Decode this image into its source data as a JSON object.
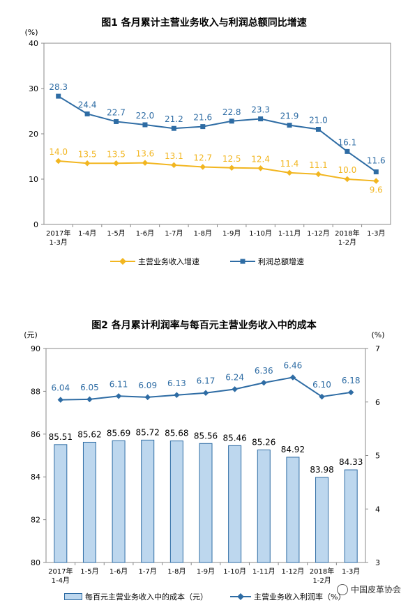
{
  "chart_data": [
    {
      "type": "line",
      "title": "图1  各月累计主营业务收入与利润总额同比增速",
      "yunit": "(%)",
      "ylim": [
        0,
        40
      ],
      "yticks": [
        0,
        10,
        20,
        30,
        40
      ],
      "categories": [
        [
          "2017年",
          "1-3月"
        ],
        [
          "1-4月"
        ],
        [
          "1-5月"
        ],
        [
          "1-6月"
        ],
        [
          "1-7月"
        ],
        [
          "1-8月"
        ],
        [
          "1-9月"
        ],
        [
          "1-10月"
        ],
        [
          "1-11月"
        ],
        [
          "1-12月"
        ],
        [
          "2018年",
          "1-2月"
        ],
        [
          "1-3月"
        ]
      ],
      "series": [
        {
          "name": "主营业务收入增速",
          "color": "#f2b620",
          "marker": "diamond",
          "values": [
            14.0,
            13.5,
            13.5,
            13.6,
            13.1,
            12.7,
            12.5,
            12.4,
            11.4,
            11.1,
            10.0,
            9.6
          ],
          "labels": [
            "14.0",
            "13.5",
            "13.5",
            "13.6",
            "13.1",
            "12.7",
            "12.5",
            "12.4",
            "11.4",
            "11.1",
            "10.0",
            "9.6"
          ]
        },
        {
          "name": "利润总额增速",
          "color": "#2e6ca4",
          "marker": "square",
          "values": [
            28.3,
            24.4,
            22.7,
            22.0,
            21.2,
            21.6,
            22.8,
            23.3,
            21.9,
            21.0,
            16.1,
            11.6
          ],
          "labels": [
            "28.3",
            "24.4",
            "22.7",
            "22.0",
            "21.2",
            "21.6",
            "22.8",
            "23.3",
            "21.9",
            "21.0",
            "16.1",
            "11.6"
          ]
        }
      ],
      "legend": "bottom"
    },
    {
      "type": "bar+line",
      "title": "图2  各月累计利润率与每百元主营业务收入中的成本",
      "yunit_left": "(元)",
      "yunit_right": "(%)",
      "ylim_left": [
        80,
        90
      ],
      "yticks_left": [
        80,
        82,
        84,
        86,
        88,
        90
      ],
      "ylim_right": [
        3,
        7
      ],
      "yticks_right": [
        3,
        4,
        5,
        6,
        7
      ],
      "categories": [
        [
          "2017年",
          "1-4月"
        ],
        [
          "1-5月"
        ],
        [
          "1-6月"
        ],
        [
          "1-7月"
        ],
        [
          "1-8月"
        ],
        [
          "1-9月"
        ],
        [
          "1-10月"
        ],
        [
          "1-11月"
        ],
        [
          "1-12月"
        ],
        [
          "2018年",
          "1-2月"
        ],
        [
          "1-3月"
        ]
      ],
      "series": [
        {
          "name": "每百元主营业务收入中的成本（元）",
          "kind": "bar",
          "axis": "left",
          "color": "#bdd7ee",
          "edge": "#2e6ca4",
          "values": [
            85.51,
            85.62,
            85.69,
            85.72,
            85.68,
            85.56,
            85.46,
            85.26,
            84.92,
            83.98,
            84.33
          ],
          "labels": [
            "85.51",
            "85.62",
            "85.69",
            "85.72",
            "85.68",
            "85.56",
            "85.46",
            "85.26",
            "84.92",
            "83.98",
            "84.33"
          ]
        },
        {
          "name": "主营业务收入利润率（%）",
          "kind": "line",
          "axis": "right",
          "color": "#2e6ca4",
          "marker": "diamond",
          "values": [
            6.04,
            6.05,
            6.11,
            6.09,
            6.13,
            6.17,
            6.24,
            6.36,
            6.46,
            6.1,
            6.18
          ],
          "labels": [
            "6.04",
            "6.05",
            "6.11",
            "6.09",
            "6.13",
            "6.17",
            "6.24",
            "6.36",
            "6.46",
            "6.10",
            "6.18"
          ]
        }
      ],
      "legend": "bottom"
    }
  ],
  "watermark": {
    "text": "中国皮革协会",
    "icon": "wechat-icon"
  }
}
